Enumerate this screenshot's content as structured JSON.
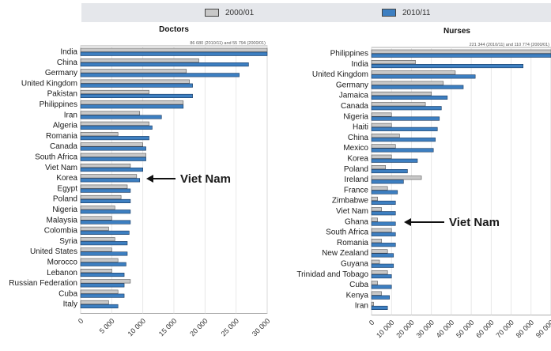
{
  "legend": {
    "items": [
      {
        "label": "2000/01",
        "color": "#c8c8c8"
      },
      {
        "label": "2010/11",
        "color": "#3d7fc1"
      }
    ]
  },
  "chart_data": [
    {
      "type": "bar",
      "orientation": "horizontal",
      "title": "Doctors",
      "note": "86 680 (2010/11) and 55 794 (2000/01)",
      "categories": [
        "India",
        "China",
        "Germany",
        "United Kingdom",
        "Pakistan",
        "Philippines",
        "Iran",
        "Algeria",
        "Romania",
        "Canada",
        "South Africa",
        "Viet Nam",
        "Korea",
        "Egypt",
        "Poland",
        "Nigeria",
        "Malaysia",
        "Colombia",
        "Syria",
        "United States",
        "Morocco",
        "Lebanon",
        "Russian Federation",
        "Cuba",
        "Italy"
      ],
      "series": [
        {
          "name": "2000/01",
          "values": [
            30000,
            19000,
            17000,
            17500,
            11000,
            16500,
            9500,
            11000,
            6000,
            10000,
            10500,
            8000,
            9000,
            7500,
            6500,
            5500,
            5000,
            4500,
            5500,
            5000,
            6000,
            5000,
            8000,
            6000,
            4500
          ]
        },
        {
          "name": "2010/11",
          "values": [
            30000,
            27000,
            25500,
            18000,
            18000,
            16500,
            13000,
            11500,
            11000,
            10500,
            10500,
            10000,
            9500,
            8000,
            8000,
            8000,
            8000,
            7800,
            7500,
            7500,
            7300,
            7000,
            7000,
            7000,
            6000
          ]
        }
      ],
      "xlim": [
        0,
        30000
      ],
      "ticks": [
        "0",
        "5 000",
        "10 000",
        "15 000",
        "20 000",
        "25 000",
        "30 000"
      ],
      "annotation": "Viet Nam"
    },
    {
      "type": "bar",
      "orientation": "horizontal",
      "title": "Nurses",
      "note": "221 344 (2010/11) and 110 774 (2000/01)",
      "categories": [
        "Philippines",
        "India",
        "United Kingdom",
        "Germany",
        "Jamaica",
        "Canada",
        "Nigeria",
        "Haiti",
        "China",
        "Mexico",
        "Korea",
        "Poland",
        "Ireland",
        "France",
        "Zimbabwe",
        "Viet Nam",
        "Ghana",
        "South Africa",
        "Romania",
        "New Zealand",
        "Guyana",
        "Trinidad and Tobago",
        "Cuba",
        "Kenya",
        "Iran"
      ],
      "series": [
        {
          "name": "2000/01",
          "values": [
            90000,
            22000,
            42000,
            36000,
            30000,
            27000,
            10000,
            10000,
            14000,
            12000,
            10000,
            7000,
            25000,
            8000,
            3000,
            5000,
            3000,
            10000,
            5000,
            8000,
            4000,
            8000,
            3000,
            5000,
            1000
          ]
        },
        {
          "name": "2010/11",
          "values": [
            90000,
            76000,
            52000,
            46000,
            38000,
            35000,
            34000,
            33000,
            32000,
            31000,
            23000,
            18000,
            16000,
            13000,
            12000,
            12000,
            12000,
            12000,
            12000,
            11000,
            11000,
            10000,
            10000,
            9000,
            8000
          ]
        }
      ],
      "xlim": [
        0,
        90000
      ],
      "ticks": [
        "0",
        "10 000",
        "20 000",
        "30 000",
        "40 000",
        "50 000",
        "60 000",
        "70 000",
        "80 000",
        "90 000"
      ],
      "annotation": "Viet Nam"
    }
  ]
}
